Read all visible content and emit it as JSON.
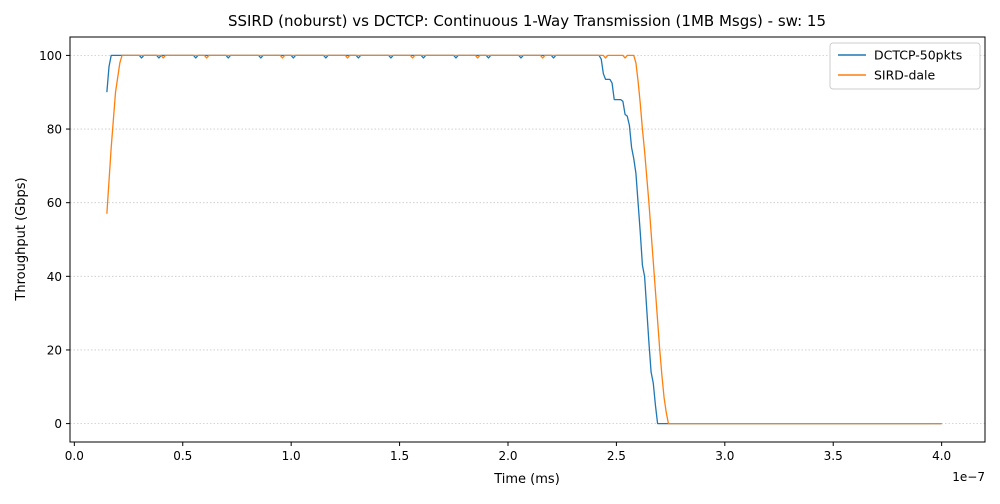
{
  "chart_data": {
    "type": "line",
    "title": "SSIRD (noburst) vs DCTCP: Continuous 1-Way Transmission (1MB Msgs) - sw: 15",
    "xlabel": "Time (ms)",
    "ylabel": "Throughput (Gbps)",
    "x_offset_label": "1e−7",
    "xlim": [
      -0.02,
      4.2
    ],
    "ylim": [
      -5,
      105
    ],
    "x_ticks": [
      0.0,
      0.5,
      1.0,
      1.5,
      2.0,
      2.5,
      3.0,
      3.5,
      4.0
    ],
    "x_tick_labels": [
      "0.0",
      "0.5",
      "1.0",
      "1.5",
      "2.0",
      "2.5",
      "3.0",
      "3.5",
      "4.0"
    ],
    "y_ticks": [
      0,
      20,
      40,
      60,
      80,
      100
    ],
    "y_tick_labels": [
      "0",
      "20",
      "40",
      "60",
      "80",
      "100"
    ],
    "grid": "horizontal-dotted",
    "legend_position": "top-right",
    "series": [
      {
        "name": "DCTCP-50pkts",
        "color": "#1f77b4",
        "points": [
          [
            0.15,
            90
          ],
          [
            0.16,
            97
          ],
          [
            0.17,
            100
          ],
          [
            0.3,
            100
          ],
          [
            0.31,
            99.3
          ],
          [
            0.32,
            100
          ],
          [
            0.38,
            100
          ],
          [
            0.39,
            99.3
          ],
          [
            0.4,
            100
          ],
          [
            0.55,
            100
          ],
          [
            0.56,
            99.3
          ],
          [
            0.57,
            100
          ],
          [
            0.7,
            100
          ],
          [
            0.71,
            99.3
          ],
          [
            0.72,
            100
          ],
          [
            0.85,
            100
          ],
          [
            0.86,
            99.3
          ],
          [
            0.87,
            100
          ],
          [
            1.0,
            100
          ],
          [
            1.01,
            99.3
          ],
          [
            1.02,
            100
          ],
          [
            1.15,
            100
          ],
          [
            1.16,
            99.3
          ],
          [
            1.17,
            100
          ],
          [
            1.3,
            100
          ],
          [
            1.31,
            99.3
          ],
          [
            1.32,
            100
          ],
          [
            1.45,
            100
          ],
          [
            1.46,
            99.3
          ],
          [
            1.47,
            100
          ],
          [
            1.6,
            100
          ],
          [
            1.61,
            99.3
          ],
          [
            1.62,
            100
          ],
          [
            1.75,
            100
          ],
          [
            1.76,
            99.3
          ],
          [
            1.77,
            100
          ],
          [
            1.9,
            100
          ],
          [
            1.91,
            99.3
          ],
          [
            1.92,
            100
          ],
          [
            2.05,
            100
          ],
          [
            2.06,
            99.3
          ],
          [
            2.07,
            100
          ],
          [
            2.2,
            100
          ],
          [
            2.21,
            99.3
          ],
          [
            2.22,
            100
          ],
          [
            2.42,
            100
          ],
          [
            2.43,
            99
          ],
          [
            2.44,
            95
          ],
          [
            2.45,
            93.5
          ],
          [
            2.47,
            93.5
          ],
          [
            2.48,
            92.5
          ],
          [
            2.49,
            88
          ],
          [
            2.52,
            88
          ],
          [
            2.53,
            87.5
          ],
          [
            2.54,
            84
          ],
          [
            2.55,
            83.5
          ],
          [
            2.56,
            81
          ],
          [
            2.57,
            75
          ],
          [
            2.58,
            72
          ],
          [
            2.59,
            68
          ],
          [
            2.6,
            60
          ],
          [
            2.61,
            52
          ],
          [
            2.62,
            43
          ],
          [
            2.63,
            40
          ],
          [
            2.64,
            31
          ],
          [
            2.65,
            22
          ],
          [
            2.66,
            14
          ],
          [
            2.67,
            11
          ],
          [
            2.68,
            5
          ],
          [
            2.69,
            0
          ],
          [
            2.75,
            0
          ],
          [
            3.0,
            0
          ],
          [
            3.5,
            0
          ],
          [
            4.0,
            0
          ]
        ]
      },
      {
        "name": "SIRD-dale",
        "color": "#ff7f0e",
        "points": [
          [
            0.15,
            57
          ],
          [
            0.17,
            75
          ],
          [
            0.19,
            90
          ],
          [
            0.21,
            98
          ],
          [
            0.22,
            100
          ],
          [
            0.4,
            100
          ],
          [
            0.41,
            99.3
          ],
          [
            0.42,
            100
          ],
          [
            0.6,
            100
          ],
          [
            0.61,
            99.3
          ],
          [
            0.62,
            100
          ],
          [
            0.95,
            100
          ],
          [
            0.96,
            99.3
          ],
          [
            0.97,
            100
          ],
          [
            1.25,
            100
          ],
          [
            1.26,
            99.3
          ],
          [
            1.27,
            100
          ],
          [
            1.55,
            100
          ],
          [
            1.56,
            99.3
          ],
          [
            1.57,
            100
          ],
          [
            1.85,
            100
          ],
          [
            1.86,
            99.3
          ],
          [
            1.87,
            100
          ],
          [
            2.15,
            100
          ],
          [
            2.16,
            99.3
          ],
          [
            2.17,
            100
          ],
          [
            2.44,
            100
          ],
          [
            2.45,
            99.3
          ],
          [
            2.46,
            100
          ],
          [
            2.53,
            100
          ],
          [
            2.54,
            99.3
          ],
          [
            2.55,
            100
          ],
          [
            2.58,
            100
          ],
          [
            2.59,
            98
          ],
          [
            2.6,
            93
          ],
          [
            2.61,
            87
          ],
          [
            2.62,
            80
          ],
          [
            2.63,
            74
          ],
          [
            2.64,
            67
          ],
          [
            2.65,
            60
          ],
          [
            2.66,
            52
          ],
          [
            2.67,
            44
          ],
          [
            2.68,
            36
          ],
          [
            2.69,
            28
          ],
          [
            2.7,
            20
          ],
          [
            2.71,
            13
          ],
          [
            2.72,
            7
          ],
          [
            2.73,
            3
          ],
          [
            2.74,
            0
          ],
          [
            3.0,
            0
          ],
          [
            3.5,
            0
          ],
          [
            4.0,
            0
          ]
        ]
      }
    ]
  }
}
